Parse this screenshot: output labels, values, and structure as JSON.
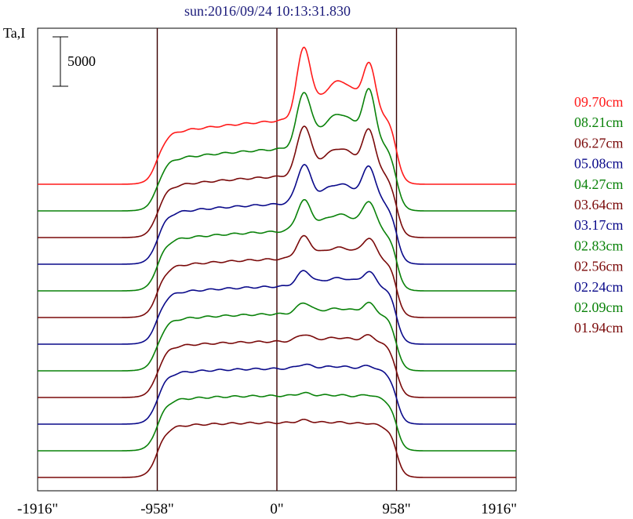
{
  "chart_data": {
    "type": "line",
    "title": "sun:2016/09/24 10:13:31.830",
    "ylabel": "Ta,I",
    "scale_bar_label": "5000",
    "x_unit": "arcsec",
    "x_ticks": [
      "-1916\"",
      "-958\"",
      "0\"",
      "958\"",
      "1916\""
    ],
    "x_tick_values": [
      -1916,
      -958,
      0,
      958,
      1916
    ],
    "xlim": [
      -1916,
      1916
    ],
    "vertical_markers": [
      -958,
      0,
      958
    ],
    "scale_bar_value": 5000,
    "series": [
      {
        "name": "09.70cm",
        "color": "#ff1a1a",
        "peak1": 0.52,
        "peak2": 0.35,
        "hump": 0.28,
        "plateau": 0.42,
        "tilt": 0.55
      },
      {
        "name": "08.21cm",
        "color": "#0a820a",
        "peak1": 0.4,
        "peak2": 0.38,
        "hump": 0.25,
        "plateau": 0.42,
        "tilt": 0.45
      },
      {
        "name": "06.27cm",
        "color": "#7a0a0a",
        "peak1": 0.36,
        "peak2": 0.3,
        "hump": 0.2,
        "plateau": 0.42,
        "tilt": 0.4
      },
      {
        "name": "05.08cm",
        "color": "#0a0a8a",
        "peak1": 0.28,
        "peak2": 0.25,
        "hump": 0.14,
        "plateau": 0.42,
        "tilt": 0.35
      },
      {
        "name": "04.27cm",
        "color": "#0a820a",
        "peak1": 0.22,
        "peak2": 0.2,
        "hump": 0.12,
        "plateau": 0.42,
        "tilt": 0.3
      },
      {
        "name": "03.64cm",
        "color": "#7a0a0a",
        "peak1": 0.16,
        "peak2": 0.14,
        "hump": 0.08,
        "plateau": 0.42,
        "tilt": 0.25
      },
      {
        "name": "03.17cm",
        "color": "#0a0a8a",
        "peak1": 0.11,
        "peak2": 0.1,
        "hump": 0.06,
        "plateau": 0.42,
        "tilt": 0.2
      },
      {
        "name": "02.83cm",
        "color": "#0a820a",
        "peak1": 0.08,
        "peak2": 0.08,
        "hump": 0.04,
        "plateau": 0.42,
        "tilt": 0.15
      },
      {
        "name": "02.56cm",
        "color": "#7a0a0a",
        "peak1": 0.05,
        "peak2": 0.05,
        "hump": 0.03,
        "plateau": 0.42,
        "tilt": 0.1
      },
      {
        "name": "02.24cm",
        "color": "#0a0a8a",
        "peak1": 0.03,
        "peak2": 0.03,
        "hump": 0.02,
        "plateau": 0.42,
        "tilt": 0.07
      },
      {
        "name": "02.09cm",
        "color": "#0a820a",
        "peak1": 0.02,
        "peak2": 0.02,
        "hump": 0.01,
        "plateau": 0.42,
        "tilt": 0.04
      },
      {
        "name": "01.94cm",
        "color": "#7a0a0a",
        "peak1": 0.02,
        "peak2": 0.01,
        "hump": 0.01,
        "plateau": 0.42,
        "tilt": 0.02
      }
    ]
  }
}
